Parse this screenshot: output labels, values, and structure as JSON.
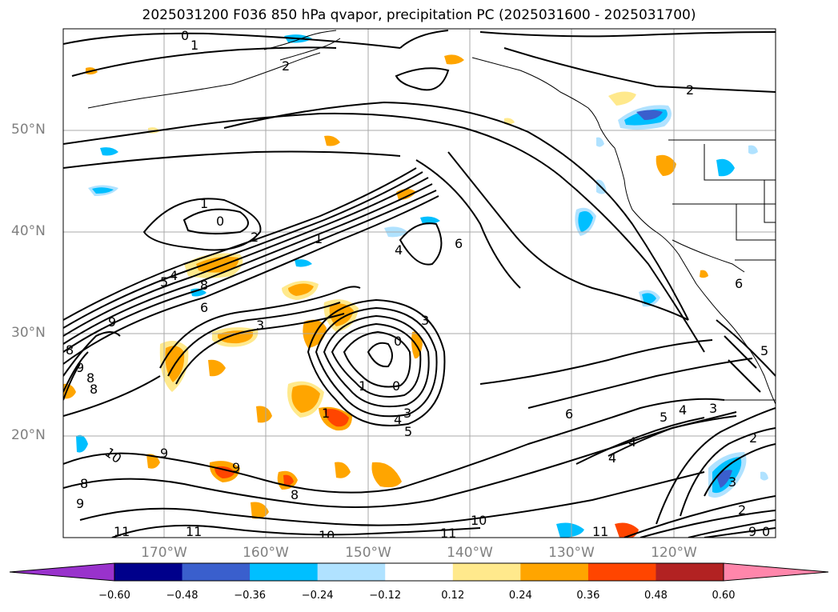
{
  "title": "2025031200 F036 850 hPa qvapor, precipitation PC (2025031600 - 2025031700)",
  "longitude_labels": [
    "170°W",
    "160°W",
    "150°W",
    "140°W",
    "130°W",
    "120°W"
  ],
  "latitude_labels": [
    "50°N",
    "40°N",
    "30°N",
    "20°N"
  ],
  "colorbar": {
    "ticks": [
      "−0.60",
      "−0.48",
      "−0.36",
      "−0.24",
      "−0.12",
      "0.12",
      "0.24",
      "0.36",
      "0.48",
      "0.60"
    ],
    "colors": [
      "#9932cc",
      "#00008b",
      "#3a5fcd",
      "#00bfff",
      "#b0e2ff",
      "#ffffff",
      "#ffe98c",
      "#ffa500",
      "#ff4500",
      "#b22222",
      "#ff86ab"
    ]
  },
  "contour_labels": [
    "0",
    "1",
    "2",
    "1",
    "0",
    "2",
    "1",
    "5",
    "4",
    "8",
    "6",
    "6",
    "4",
    "9",
    "8",
    "9",
    "8",
    "8",
    "3",
    "0",
    "9",
    "3",
    "0",
    "1",
    "0",
    "1",
    "4",
    "3",
    "5",
    "6",
    "5",
    "4",
    "3",
    "2",
    "3",
    "2",
    "6",
    "5",
    "4",
    "4",
    "10",
    "9",
    "9",
    "9",
    "8",
    "8",
    "11",
    "11",
    "10",
    "11",
    "10",
    "11",
    "9",
    "0",
    "2"
  ],
  "colors": {
    "coastline": "#000000",
    "grid": "#a9a9a9",
    "axis_label": "#808080"
  }
}
